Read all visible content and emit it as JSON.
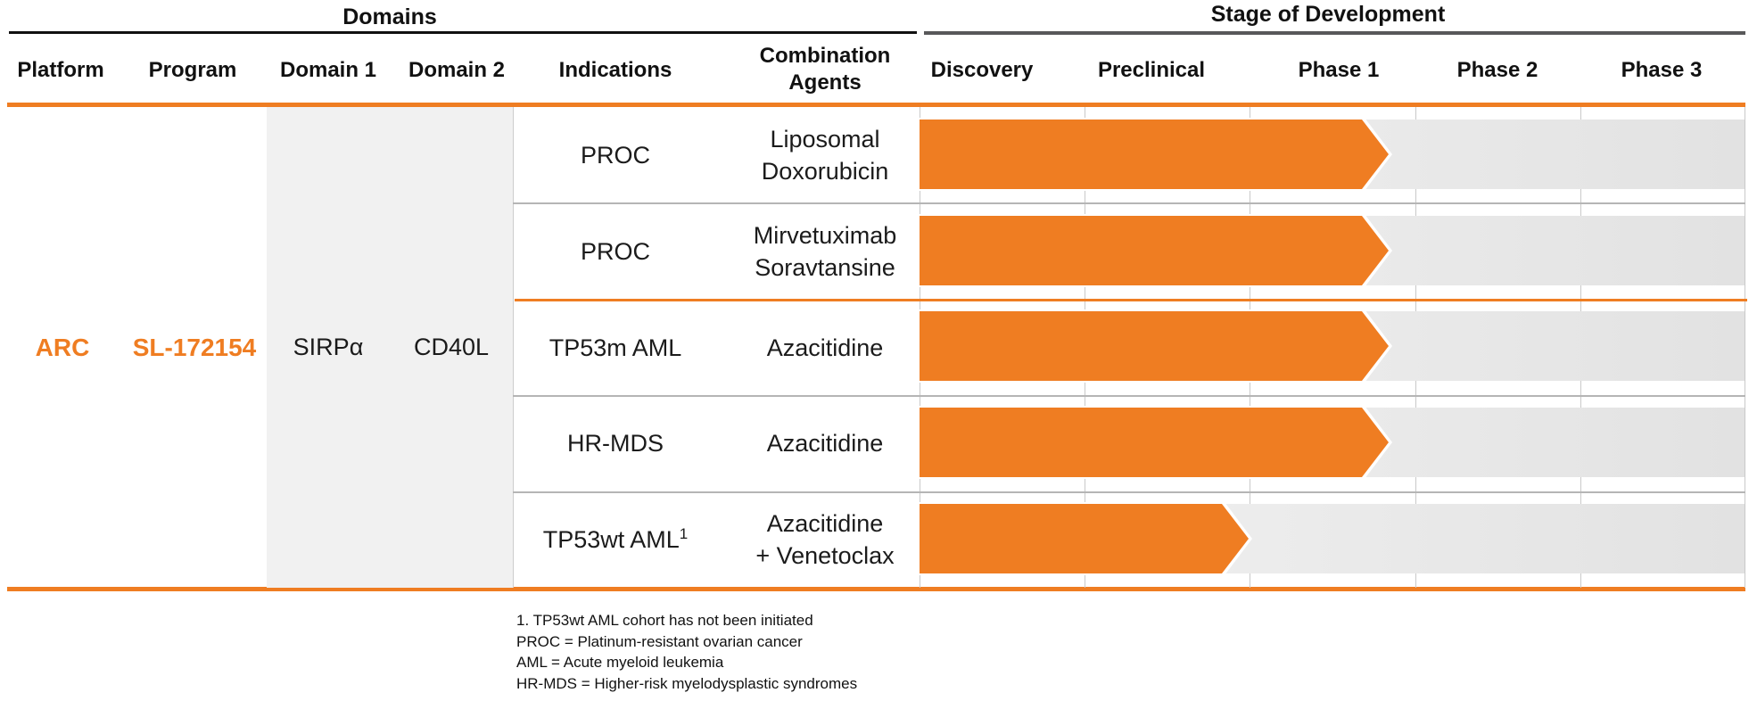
{
  "section_titles": {
    "domains": "Domains",
    "stage_of_development": "Stage of Development"
  },
  "table_headers": {
    "platform": "Platform",
    "program": "Program",
    "domain1": "Domain 1",
    "domain2": "Domain 2",
    "indications": "Indications",
    "combination_agents_line1": "Combination",
    "combination_agents_line2": "Agents"
  },
  "stage_headers": [
    "Discovery",
    "Preclinical",
    "Phase 1",
    "Phase 2",
    "Phase 3"
  ],
  "program_info": {
    "platform": "ARC",
    "program": "SL-172154",
    "domain1": "SIRPα",
    "domain2": "CD40L"
  },
  "rows": [
    {
      "indication": "PROC",
      "footnote_ref": "",
      "agents_line1": "Liposomal",
      "agents_line2": "Doxorubicin",
      "stage_reached": "Phase 1",
      "arrow_len": 528
    },
    {
      "indication": "PROC",
      "footnote_ref": "",
      "agents_line1": "Mirvetuximab",
      "agents_line2": "Soravtansine",
      "stage_reached": "Phase 1",
      "arrow_len": 528
    },
    {
      "indication": "TP53m AML",
      "footnote_ref": "",
      "agents_line1": "Azacitidine",
      "agents_line2": "",
      "stage_reached": "Phase 1",
      "arrow_len": 528
    },
    {
      "indication": "HR-MDS",
      "footnote_ref": "",
      "agents_line1": "Azacitidine",
      "agents_line2": "",
      "stage_reached": "Phase 1",
      "arrow_len": 528
    },
    {
      "indication": "TP53wt AML",
      "footnote_ref": "1",
      "agents_line1": "Azacitidine",
      "agents_line2": "+ Venetoclax",
      "stage_reached": "Preclinical",
      "arrow_len": 371
    }
  ],
  "footnotes": [
    "1. TP53wt AML cohort has not been initiated",
    "PROC = Platinum-resistant ovarian cancer",
    "AML = Acute myeloid leukemia",
    "HR-MDS = Higher-risk myelodysplastic syndromes"
  ],
  "colors": {
    "accent_orange": "#EF7D22",
    "domain_band_gray": "#F1F1F1",
    "grid_line": "#C9C9C9",
    "row_separator": "#B5B5B5",
    "stage_underline": "#58585A",
    "domains_underline": "#111111"
  },
  "chart_data": {
    "type": "bar",
    "orientation": "horizontal",
    "title": "Stage of Development",
    "x_axis_stages": [
      "Discovery",
      "Preclinical",
      "Phase 1",
      "Phase 2",
      "Phase 3"
    ],
    "xlim_stage_units": [
      0,
      5
    ],
    "categories": [
      "PROC + Liposomal Doxorubicin",
      "PROC + Mirvetuximab Soravtansine",
      "TP53m AML + Azacitidine",
      "HR-MDS + Azacitidine",
      "TP53wt AML + Azacitidine + Venetoclax"
    ],
    "values_stage_units": [
      2.85,
      2.85,
      2.85,
      2.85,
      2.0
    ],
    "bar_color": "#EF7D22",
    "grid": true,
    "legend": false
  }
}
